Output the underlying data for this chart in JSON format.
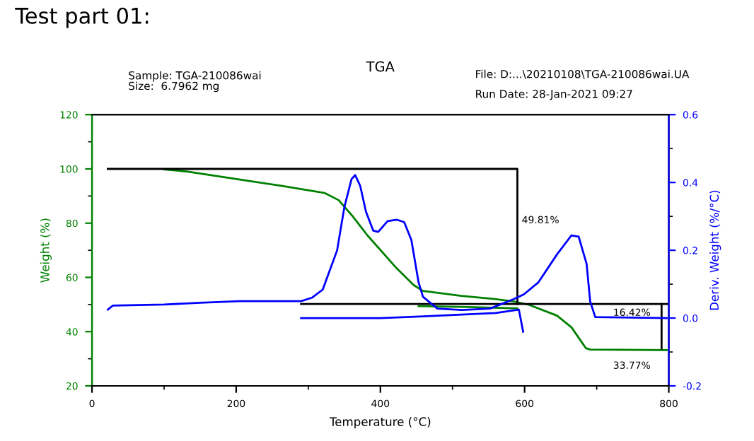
{
  "chart_data": {
    "type": "line",
    "title": "TGA",
    "annotations": [
      "Test part 01:",
      "Sample: TGA-210086wai",
      "Size:  6.7962 mg",
      "File: D:...\\20210108\\TGA-210086wai.UA",
      "Run Date: 28-Jan-2021 09:27",
      "49.81%",
      "16.42%",
      "33.77%"
    ],
    "xlabel": "Temperature (°C)",
    "ylabel": "Weight (%)",
    "y2label": "Deriv. Weight (%/°C)",
    "xlim": [
      0,
      800
    ],
    "xticks": [
      0,
      200,
      400,
      600,
      800
    ],
    "ylim": [
      20,
      120
    ],
    "yticks": [
      20,
      40,
      60,
      80,
      100,
      120
    ],
    "y2lim": [
      -0.2,
      0.6
    ],
    "y2ticks": [
      {
        "value": -0.2,
        "label": "-0.2"
      },
      {
        "value": 0,
        "label": "0.0"
      },
      {
        "value": 0.2,
        "label": "0.2"
      },
      {
        "value": 0.4,
        "label": "0.4"
      },
      {
        "value": 0.6,
        "label": "0.6"
      }
    ],
    "grid": false,
    "legend": false,
    "series": [
      {
        "color": "#008000",
        "x": [
          100,
          133,
          199,
          264,
          323,
          342,
          362,
          382,
          421,
          446,
          459,
          512,
          559,
          585,
          606,
          645,
          665,
          685,
          691,
          797
        ],
        "values": [
          99.8,
          99,
          96.3,
          93.7,
          91.1,
          88.5,
          82.4,
          75.5,
          63.8,
          57.2,
          55,
          53.2,
          52,
          51.1,
          49.9,
          45.9,
          41.6,
          33.9,
          33.4,
          33.2
        ]
      },
      {
        "color": "#008000",
        "x": [
          453,
          520,
          590
        ],
        "values": [
          49.4,
          49.1,
          48.6
        ]
      },
      {
        "color": "#0000ff",
        "axis": "y2",
        "x": [
          22,
          29,
          100,
          150,
          205,
          290,
          305,
          320,
          340,
          350,
          360,
          365,
          372,
          380,
          390,
          397,
          410,
          423,
          433,
          443,
          453,
          459,
          479,
          513,
          552,
          585,
          599,
          619,
          645,
          665,
          675,
          686,
          691,
          698,
          797
        ],
        "values": [
          0.025,
          0.037,
          0.04,
          0.045,
          0.05,
          0.05,
          0.06,
          0.084,
          0.2,
          0.327,
          0.41,
          0.422,
          0.39,
          0.314,
          0.258,
          0.254,
          0.286,
          0.29,
          0.283,
          0.23,
          0.105,
          0.063,
          0.028,
          0.024,
          0.028,
          0.056,
          0.07,
          0.105,
          0.188,
          0.244,
          0.24,
          0.16,
          0.049,
          0.003,
          0.0
        ]
      },
      {
        "color": "#0000ff",
        "axis": "y2",
        "x": [
          290,
          400,
          460,
          560,
          592,
          598
        ],
        "values": [
          0.0,
          0.0,
          0.005,
          0.015,
          0.025,
          -0.04
        ]
      },
      {
        "color": "#000000",
        "x": [
          22,
          590,
          590
        ],
        "values": [
          100,
          100,
          50.2
        ]
      },
      {
        "color": "#000000",
        "x": [
          290,
          800
        ],
        "values": [
          50.2,
          50.2
        ]
      },
      {
        "color": "#000000",
        "x": [
          790,
          790
        ],
        "values": [
          50.2,
          33.8
        ]
      }
    ]
  }
}
